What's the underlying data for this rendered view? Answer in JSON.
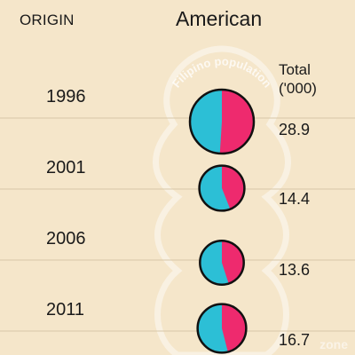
{
  "header": {
    "origin_label": "ORIGIN",
    "country": "American",
    "total_label_line1": "Total",
    "total_label_line2": "('000)"
  },
  "background_text": "Filipino population",
  "watermark": "zone",
  "colors": {
    "background": "#f5e6ca",
    "male": "#2cbfd6",
    "female": "#ee2a6e",
    "gridline": "#d6c7a8",
    "outline": "#111111"
  },
  "chart_data": {
    "type": "pie",
    "rows": [
      {
        "year": "1996",
        "total": "28.9",
        "total_value": 28.9,
        "male_share": 0.49
      },
      {
        "year": "2001",
        "total": "14.4",
        "total_value": 14.4,
        "male_share": 0.56
      },
      {
        "year": "2006",
        "total": "13.6",
        "total_value": 13.6,
        "male_share": 0.55
      },
      {
        "year": "2011",
        "total": "16.7",
        "total_value": 16.7,
        "male_share": 0.54
      }
    ]
  }
}
